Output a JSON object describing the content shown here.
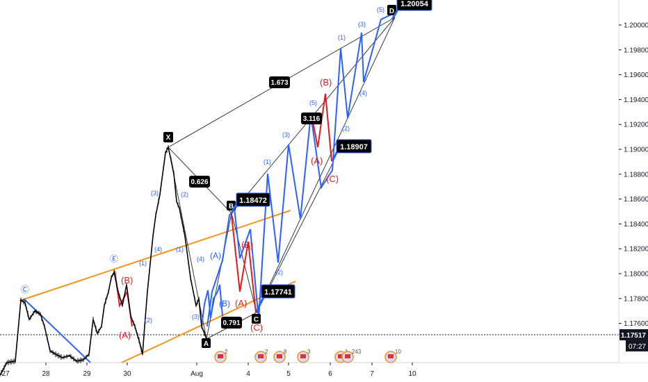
{
  "chart_data": {
    "type": "line",
    "symbol": "",
    "y_axis": {
      "ticks": [
        "1.20000",
        "1.19800",
        "1.19600",
        "1.19400",
        "1.19200",
        "1.19000",
        "1.18800",
        "1.18600",
        "1.18400",
        "1.18200",
        "1.18000",
        "1.17800",
        "1.17600"
      ],
      "ylim": [
        1.1728,
        1.2057
      ],
      "current_price": "1.17517",
      "countdown": "07:27"
    },
    "x_axis": {
      "ticks": [
        "27",
        "28",
        "29",
        "30",
        "Aug",
        "4",
        "5",
        "6",
        "7",
        "10"
      ]
    },
    "price_series": [
      [
        0,
        1.1732
      ],
      [
        1,
        1.1768
      ],
      [
        1.5,
        1.1754
      ],
      [
        2,
        1.176
      ],
      [
        3,
        1.1738
      ],
      [
        3.7,
        1.1732
      ],
      [
        4,
        1.173
      ],
      [
        5,
        1.1728
      ],
      [
        6,
        1.1735
      ],
      [
        6.5,
        1.176
      ],
      [
        7,
        1.1745
      ],
      [
        7.5,
        1.1775
      ],
      [
        8,
        1.1786
      ],
      [
        8.5,
        1.1779
      ],
      [
        9,
        1.1804
      ],
      [
        9.4,
        1.1782
      ],
      [
        10,
        1.1792
      ],
      [
        10.5,
        1.1768
      ],
      [
        10.8,
        1.1755
      ],
      [
        11.2,
        1.1748
      ],
      [
        11.5,
        1.1762
      ],
      [
        12,
        1.177
      ],
      [
        12.5,
        1.1788
      ],
      [
        12.9,
        1.1808
      ],
      [
        13.2,
        1.1818
      ],
      [
        13.6,
        1.1845
      ],
      [
        14,
        1.1858
      ],
      [
        14.3,
        1.1871
      ],
      [
        14.6,
        1.1885
      ],
      [
        14.9,
        1.1895
      ],
      [
        15.2,
        1.1902
      ],
      [
        15.5,
        1.1885
      ],
      [
        15.8,
        1.1893
      ],
      [
        16.1,
        1.187
      ],
      [
        16.4,
        1.1861
      ],
      [
        16.7,
        1.1848
      ],
      [
        17,
        1.1838
      ],
      [
        17.3,
        1.182
      ],
      [
        17.6,
        1.1808
      ],
      [
        17.9,
        1.1799
      ],
      [
        18.2,
        1.179
      ],
      [
        18.5,
        1.1783
      ],
      [
        18.8,
        1.177
      ],
      [
        19.1,
        1.1763
      ],
      [
        19.5,
        1.177
      ],
      [
        19.8,
        1.178
      ],
      [
        20.1,
        1.1772
      ]
    ],
    "current_wave_path": [
      [
        1.17741,
        4.85
      ],
      [
        1.1786,
        5.35
      ],
      [
        1.177,
        5.9
      ],
      [
        1.17948,
        6.35
      ],
      [
        1.17648,
        6.85
      ],
      [
        1.182,
        7.35
      ]
    ],
    "labels": [
      {
        "t": "X",
        "v": "1.19025",
        "i": "X"
      },
      {
        "t": "A",
        "v": "1.17517",
        "i": "A"
      },
      {
        "t": "B",
        "v": "1.18472",
        "i": "B"
      },
      {
        "t": "C",
        "v": "1.17741",
        "i": "C"
      },
      {
        "t": "D",
        "v": "1.20054",
        "i": "D"
      }
    ],
    "point_labels": [
      "X",
      "A",
      "B",
      "C",
      "D"
    ],
    "price_labels": [
      "1.18472",
      "1.17741",
      "1.18907",
      "1.20054"
    ],
    "ratios": [
      "0.626",
      "0.791",
      "1.673",
      "3.116"
    ],
    "wave_labels_blue": [
      "Ⓒ",
      "Ⓔ",
      "(A)",
      "(B)",
      "(1)",
      "(2)",
      "(3)",
      "(4)",
      "(5)"
    ],
    "wave_labels_red": [
      "(A)",
      "(B)",
      "(C)"
    ],
    "event_badges": [
      "2",
      "2",
      "8",
      "3",
      "1",
      "243",
      "10"
    ]
  },
  "colors": {
    "price": "#000000",
    "pattern": "#363a45",
    "wave": "#2962ff",
    "correction": "#e01b1b",
    "channel": "#f7931a",
    "label_bg": "#000000"
  }
}
